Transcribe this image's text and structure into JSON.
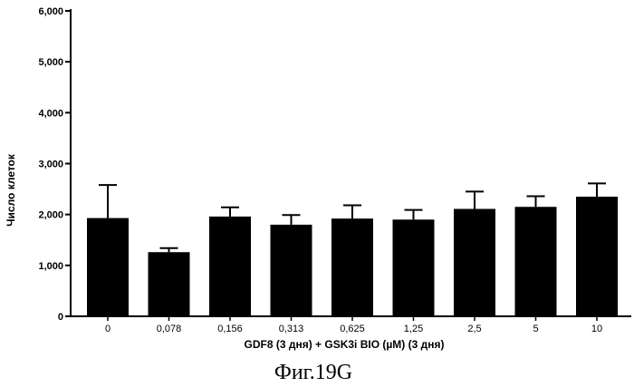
{
  "chart_data": {
    "type": "bar",
    "categories": [
      "0",
      "0,078",
      "0,156",
      "0,313",
      "0,625",
      "1,25",
      "2,5",
      "5",
      "10"
    ],
    "values": [
      1930,
      1260,
      1960,
      1800,
      1920,
      1900,
      2110,
      2150,
      2350
    ],
    "errors": [
      650,
      80,
      180,
      190,
      260,
      190,
      340,
      210,
      260
    ],
    "ylabel": "Число клеток",
    "xlabel": "GDF8 (3 дня)  + GSK3i BIO (µM) (3 дня)",
    "ylim": [
      0,
      6000
    ],
    "yticks": [
      0,
      1000,
      2000,
      3000,
      4000,
      5000,
      6000
    ],
    "ytick_labels": [
      "0",
      "1,000",
      "2,000",
      "3,000",
      "4,000",
      "5,000",
      "6,000"
    ],
    "bar_color": "#000000",
    "grid": false,
    "caption": "Фиг.19G"
  }
}
